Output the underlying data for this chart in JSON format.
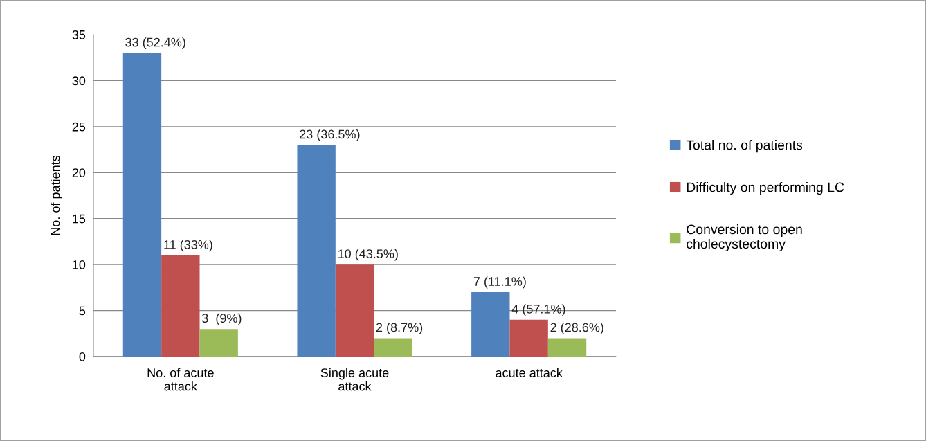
{
  "chart_data": {
    "type": "bar",
    "ylabel": "No. of patients",
    "categories": [
      "No. of acute\nattack",
      "Single acute\nattack",
      "acute attack"
    ],
    "series": [
      {
        "name": "Total no. of patients",
        "color": "#4f81bd",
        "values": [
          33,
          23,
          7
        ],
        "value_labels": [
          "33 (52.4%)",
          "23 (36.5%)",
          "7 (11.1%)"
        ]
      },
      {
        "name": "Difficulty on performing LC",
        "color": "#c0504d",
        "values": [
          11,
          10,
          4
        ],
        "value_labels": [
          "11 (33%)",
          "10 (43.5%)",
          "4 (57.1%)"
        ]
      },
      {
        "name": "Conversion to open\ncholecystectomy",
        "color": "#9bbb59",
        "values": [
          3,
          2,
          2
        ],
        "value_labels": [
          "3  (9%)",
          "2 (8.7%)",
          "2 (28.6%)"
        ]
      }
    ],
    "ylim": [
      0,
      35
    ],
    "yticks": [
      0,
      5,
      10,
      15,
      20,
      25,
      30,
      35
    ],
    "grid": "y",
    "legend": "right"
  }
}
